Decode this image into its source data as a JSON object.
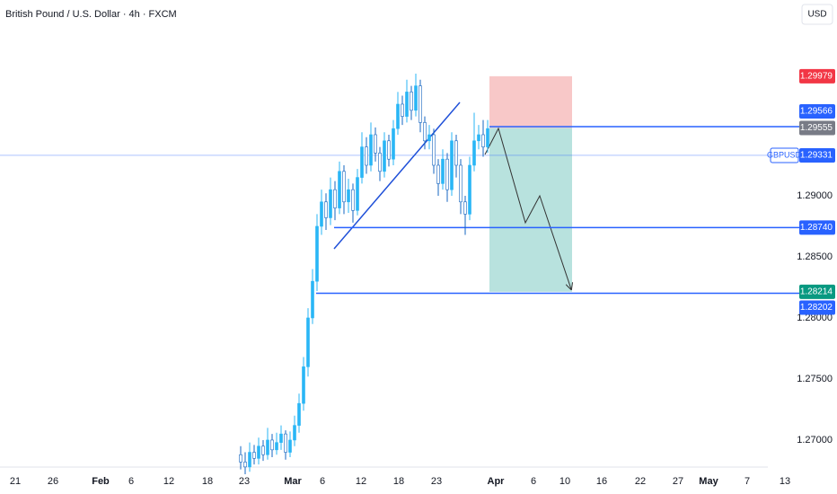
{
  "chart_data": {
    "type": "candlestick",
    "title": "British Pound / U.S. Dollar · 4h · FXCM",
    "currency": "USD",
    "ylim": [
      1.26779,
      1.30603
    ],
    "yticks": [
      {
        "value": 1.29,
        "label": "1.29000"
      },
      {
        "value": 1.285,
        "label": "1.28500"
      },
      {
        "value": 1.28,
        "label": "1.28000"
      },
      {
        "value": 1.275,
        "label": "1.27500"
      },
      {
        "value": 1.27,
        "label": "1.27000"
      }
    ],
    "x_labels": [
      "21",
      "26",
      "Feb",
      "6",
      "12",
      "18",
      "23",
      "Mar",
      "6",
      "12",
      "18",
      "23",
      "Apr",
      "6",
      "10",
      "16",
      "22",
      "27",
      "May",
      "7",
      "13"
    ],
    "up_color": "#29b6f6",
    "down_color": "#1565c0",
    "open": [
      1.2688,
      1.2682,
      1.2678,
      1.269,
      1.2685,
      1.2695,
      1.2688,
      1.27,
      1.2692,
      1.2698,
      1.2705,
      1.269,
      1.27,
      1.2712,
      1.273,
      1.276,
      1.28,
      1.283,
      1.2875,
      1.2895,
      1.2882,
      1.2905,
      1.289,
      1.292,
      1.2895,
      1.2905,
      1.2888,
      1.2915,
      1.294,
      1.2925,
      1.295,
      1.2935,
      1.292,
      1.2945,
      1.293,
      1.2955,
      1.2975,
      1.2965,
      1.2985,
      1.297,
      1.299,
      1.296,
      1.2945,
      1.295,
      1.2925,
      1.291,
      1.293,
      1.2905,
      1.2945,
      1.2925,
      1.2895,
      1.2885,
      1.2925,
      1.2945,
      1.295,
      1.294
    ],
    "high": [
      1.2695,
      1.269,
      1.2698,
      1.2696,
      1.2702,
      1.27,
      1.271,
      1.2705,
      1.2706,
      1.2712,
      1.2708,
      1.2707,
      1.272,
      1.2738,
      1.2768,
      1.2808,
      1.284,
      1.2885,
      1.2905,
      1.2902,
      1.2915,
      1.2912,
      1.2928,
      1.2925,
      1.2914,
      1.291,
      1.2922,
      1.2952,
      1.2948,
      1.296,
      1.2956,
      1.294,
      1.2952,
      1.295,
      1.2962,
      1.2985,
      1.2982,
      1.2995,
      1.299,
      1.3,
      1.2995,
      1.2965,
      1.2958,
      1.2955,
      1.293,
      1.2938,
      1.2935,
      1.2952,
      1.295,
      1.293,
      1.29,
      1.2932,
      1.2968,
      1.2958,
      1.2962,
      1.2962
    ],
    "low": [
      1.2676,
      1.2672,
      1.2674,
      1.268,
      1.268,
      1.2683,
      1.2684,
      1.2686,
      1.2688,
      1.2692,
      1.2684,
      1.2686,
      1.2695,
      1.2706,
      1.2724,
      1.2752,
      1.2795,
      1.2822,
      1.2868,
      1.2872,
      1.2876,
      1.288,
      1.2885,
      1.2885,
      1.2886,
      1.2878,
      1.2884,
      1.291,
      1.2918,
      1.292,
      1.2928,
      1.2912,
      1.2915,
      1.2924,
      1.2925,
      1.295,
      1.2958,
      1.296,
      1.2962,
      1.2965,
      1.2952,
      1.2938,
      1.2938,
      1.2918,
      1.29,
      1.2905,
      1.2895,
      1.29,
      1.2915,
      1.2885,
      1.2868,
      1.288,
      1.292,
      1.2938,
      1.2932,
      1.2935
    ],
    "close": [
      1.2682,
      1.2678,
      1.269,
      1.2685,
      1.2695,
      1.2688,
      1.27,
      1.2692,
      1.2698,
      1.2705,
      1.269,
      1.27,
      1.2712,
      1.273,
      1.276,
      1.28,
      1.283,
      1.2875,
      1.2895,
      1.2882,
      1.2905,
      1.289,
      1.292,
      1.2895,
      1.2905,
      1.2888,
      1.2915,
      1.294,
      1.2925,
      1.295,
      1.2935,
      1.292,
      1.2945,
      1.293,
      1.2955,
      1.2975,
      1.2965,
      1.2985,
      1.297,
      1.299,
      1.296,
      1.2945,
      1.295,
      1.2925,
      1.291,
      1.293,
      1.2905,
      1.2945,
      1.2925,
      1.2895,
      1.2885,
      1.2925,
      1.2945,
      1.295,
      1.294,
      1.2955
    ],
    "price_labels": [
      {
        "value": 1.29979,
        "label": "1.29979",
        "color": "#f23645"
      },
      {
        "value": 1.29566,
        "label": "1.29566",
        "color": "#2962ff"
      },
      {
        "value": 1.29555,
        "label": "1.29555",
        "color": "#787b86"
      },
      {
        "value": 1.29331,
        "label": "1.29331",
        "name": "GBPUSD",
        "color": "#2962ff"
      },
      {
        "value": 1.2874,
        "label": "1.28740",
        "color": "#2962ff"
      },
      {
        "value": 1.28214,
        "label": "1.28214",
        "color": "#089981"
      },
      {
        "value": 1.28202,
        "label": "1.28202",
        "color": "#2962ff"
      }
    ],
    "position": {
      "stop": 1.29979,
      "entry": 1.29555,
      "target": 1.28214,
      "stop_color": "#f8c8c8",
      "target_color": "#b8e2de"
    }
  }
}
